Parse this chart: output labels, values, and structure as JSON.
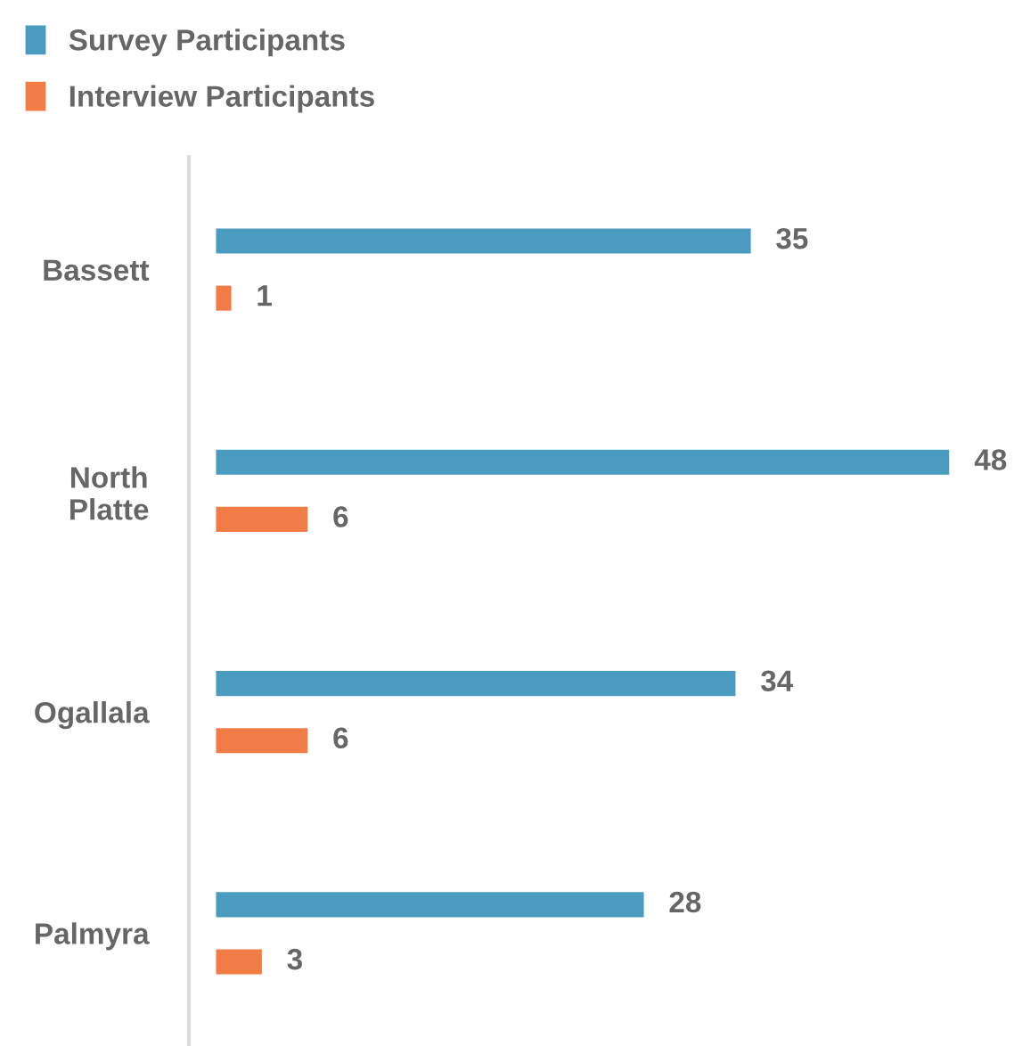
{
  "chart_data": {
    "type": "bar",
    "orientation": "horizontal",
    "categories": [
      "Bassett",
      "North\nPlatte",
      "Ogallala",
      "Palmyra"
    ],
    "series": [
      {
        "name": "Survey Participants",
        "color": "#4a9bc0",
        "values": [
          35,
          48,
          34,
          28
        ]
      },
      {
        "name": "Interview Participants",
        "color": "#f27c45",
        "values": [
          1,
          6,
          6,
          3
        ]
      }
    ],
    "data_labels": true,
    "legend": "top left",
    "grid": false
  }
}
